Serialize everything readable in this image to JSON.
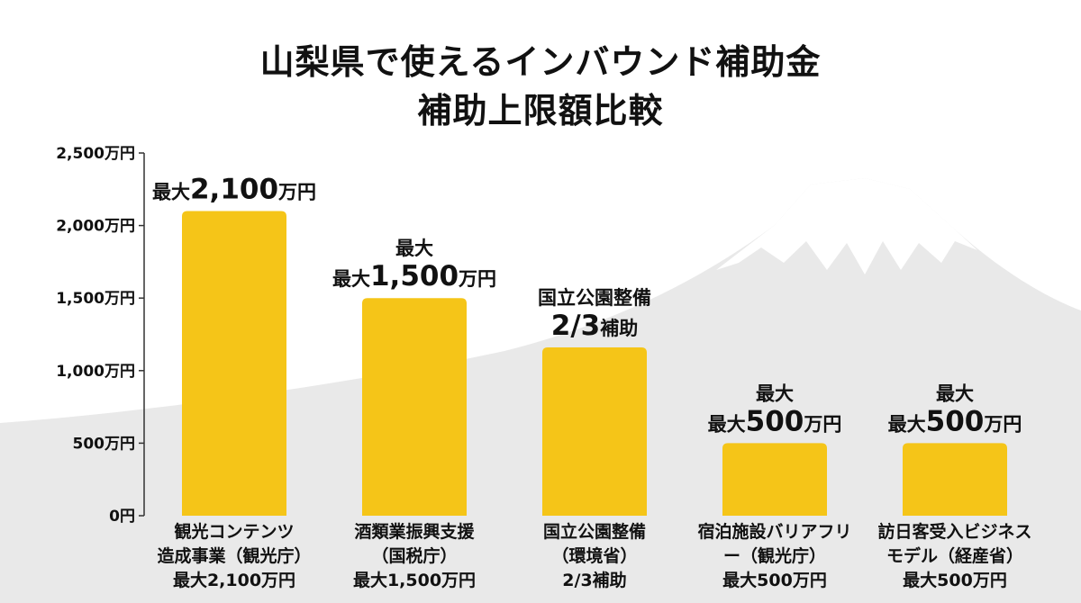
{
  "title_lines": [
    "山梨県で使えるインバウンド補助金",
    "補助上限額比較"
  ],
  "colors": {
    "bar": "#f5c518",
    "mountain": "#e9e9e9",
    "snow": "#ffffff",
    "axis": "#333333"
  },
  "chart_data": {
    "type": "bar",
    "title": "山梨県で使えるインバウンド補助金 補助上限額比較",
    "xlabel": "",
    "ylabel": "",
    "ylim": [
      0,
      2500
    ],
    "yticks": [
      0,
      500,
      1000,
      1500,
      2000,
      2500
    ],
    "ytick_labels": [
      "0円",
      "500万円",
      "1,000万円",
      "1,500万円",
      "2,000万円",
      "2,500万円"
    ],
    "grid": false,
    "categories": [
      [
        "観光コンテンツ",
        "造成事業（観光庁）",
        "最大2,100万円"
      ],
      [
        "酒類業振興支援",
        "（国税庁）",
        "最大1,500万円"
      ],
      [
        "国立公園整備",
        "（環境省）",
        "2/3補助"
      ],
      [
        "宿泊施設バリアフリ",
        "ー（観光庁）",
        "最大500万円"
      ],
      [
        "訪日客受入ビジネス",
        "モデル（経産省）",
        "最大500万円"
      ]
    ],
    "values": [
      2100,
      1500,
      1160,
      500,
      500
    ],
    "data_labels": [
      [
        {
          "text": "最大",
          "size": "small"
        },
        {
          "text": "2,100",
          "size": "large"
        },
        {
          "text": "万円",
          "size": "small"
        }
      ],
      [
        {
          "text": "最大",
          "size": "small"
        },
        {
          "text": "\n",
          "size": "break"
        },
        {
          "text": "最大",
          "size": "small"
        },
        {
          "text": "1,500",
          "size": "large"
        },
        {
          "text": "万円",
          "size": "small"
        }
      ],
      [
        {
          "text": "国立公園整備",
          "size": "small"
        },
        {
          "text": "\n",
          "size": "break"
        },
        {
          "text": "2/3",
          "size": "large"
        },
        {
          "text": "補助",
          "size": "small"
        }
      ],
      [
        {
          "text": "最大",
          "size": "small"
        },
        {
          "text": "\n",
          "size": "break"
        },
        {
          "text": "最大",
          "size": "small"
        },
        {
          "text": "500",
          "size": "large"
        },
        {
          "text": "万円",
          "size": "small"
        }
      ],
      [
        {
          "text": "最大",
          "size": "small"
        },
        {
          "text": "\n",
          "size": "break"
        },
        {
          "text": "最大",
          "size": "small"
        },
        {
          "text": "500",
          "size": "large"
        },
        {
          "text": "万円",
          "size": "small"
        }
      ]
    ]
  }
}
